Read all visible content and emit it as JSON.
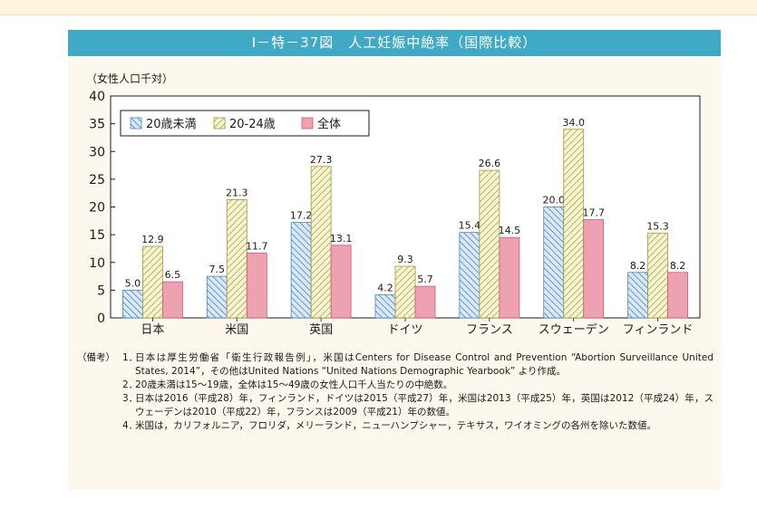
{
  "figure_title": "Ⅰ－特－37図　人工妊娠中絶率（国際比較）",
  "chart_data": {
    "type": "bar",
    "ylabel": "（女性人口千対）",
    "ylim": [
      0,
      40
    ],
    "yticks": [
      0,
      5,
      10,
      15,
      20,
      25,
      30,
      35,
      40
    ],
    "categories": [
      "日本",
      "米国",
      "英国",
      "ドイツ",
      "フランス",
      "スウェーデン",
      "フィンランド"
    ],
    "series": [
      {
        "name": "20歳未満",
        "values": [
          5.0,
          7.5,
          17.2,
          4.2,
          15.4,
          20.0,
          8.2
        ],
        "labels": [
          "5.0",
          "7.5",
          "17.2",
          "4.2",
          "15.4",
          "20.0",
          "8.2"
        ],
        "color": "#b9d6f2",
        "stroke": "#5b86c4",
        "pattern": "diagonal-left"
      },
      {
        "name": "20-24歳",
        "values": [
          12.9,
          21.3,
          27.3,
          9.3,
          26.6,
          34.0,
          15.3
        ],
        "labels": [
          "12.9",
          "21.3",
          "27.3",
          "9.3",
          "26.6",
          "34.0",
          "15.3"
        ],
        "color": "#f3f0c4",
        "stroke": "#9c9a3e",
        "pattern": "diagonal-right"
      },
      {
        "name": "全体",
        "values": [
          6.5,
          11.7,
          13.1,
          5.7,
          14.5,
          17.7,
          8.2
        ],
        "labels": [
          "6.5",
          "11.7",
          "13.1",
          "5.7",
          "14.5",
          "17.7",
          "8.2"
        ],
        "color": "#ec9aaa",
        "stroke": "#c85a6f",
        "pattern": "solid"
      }
    ],
    "legend_position": "top-left",
    "grid": false
  },
  "notes": {
    "lead": "（備考）",
    "items": [
      {
        "num": "1．",
        "text": "日本は厚生労働省「衛生行政報告例」，米国はCenters for Disease Control and Prevention “Abortion Surveillance United States, 2014”，その他はUnited Nations “United Nations Demographic Yearbook” より作成。"
      },
      {
        "num": "2．",
        "text": "20歳未満は15～19歳，全体は15～49歳の女性人口千人当たりの中絶数。"
      },
      {
        "num": "3．",
        "text": "日本は2016（平成28）年，フィンランド，ドイツは2015（平成27）年，米国は2013（平成25）年，英国は2012（平成24）年，スウェーデンは2010（平成22）年，フランスは2009（平成21）年の数値。"
      },
      {
        "num": "4．",
        "text": "米国は，カリフォルニア，フロリダ，メリーランド，ニューハンプシャー，テキサス，ワイオミングの各州を除いた数値。"
      }
    ]
  }
}
